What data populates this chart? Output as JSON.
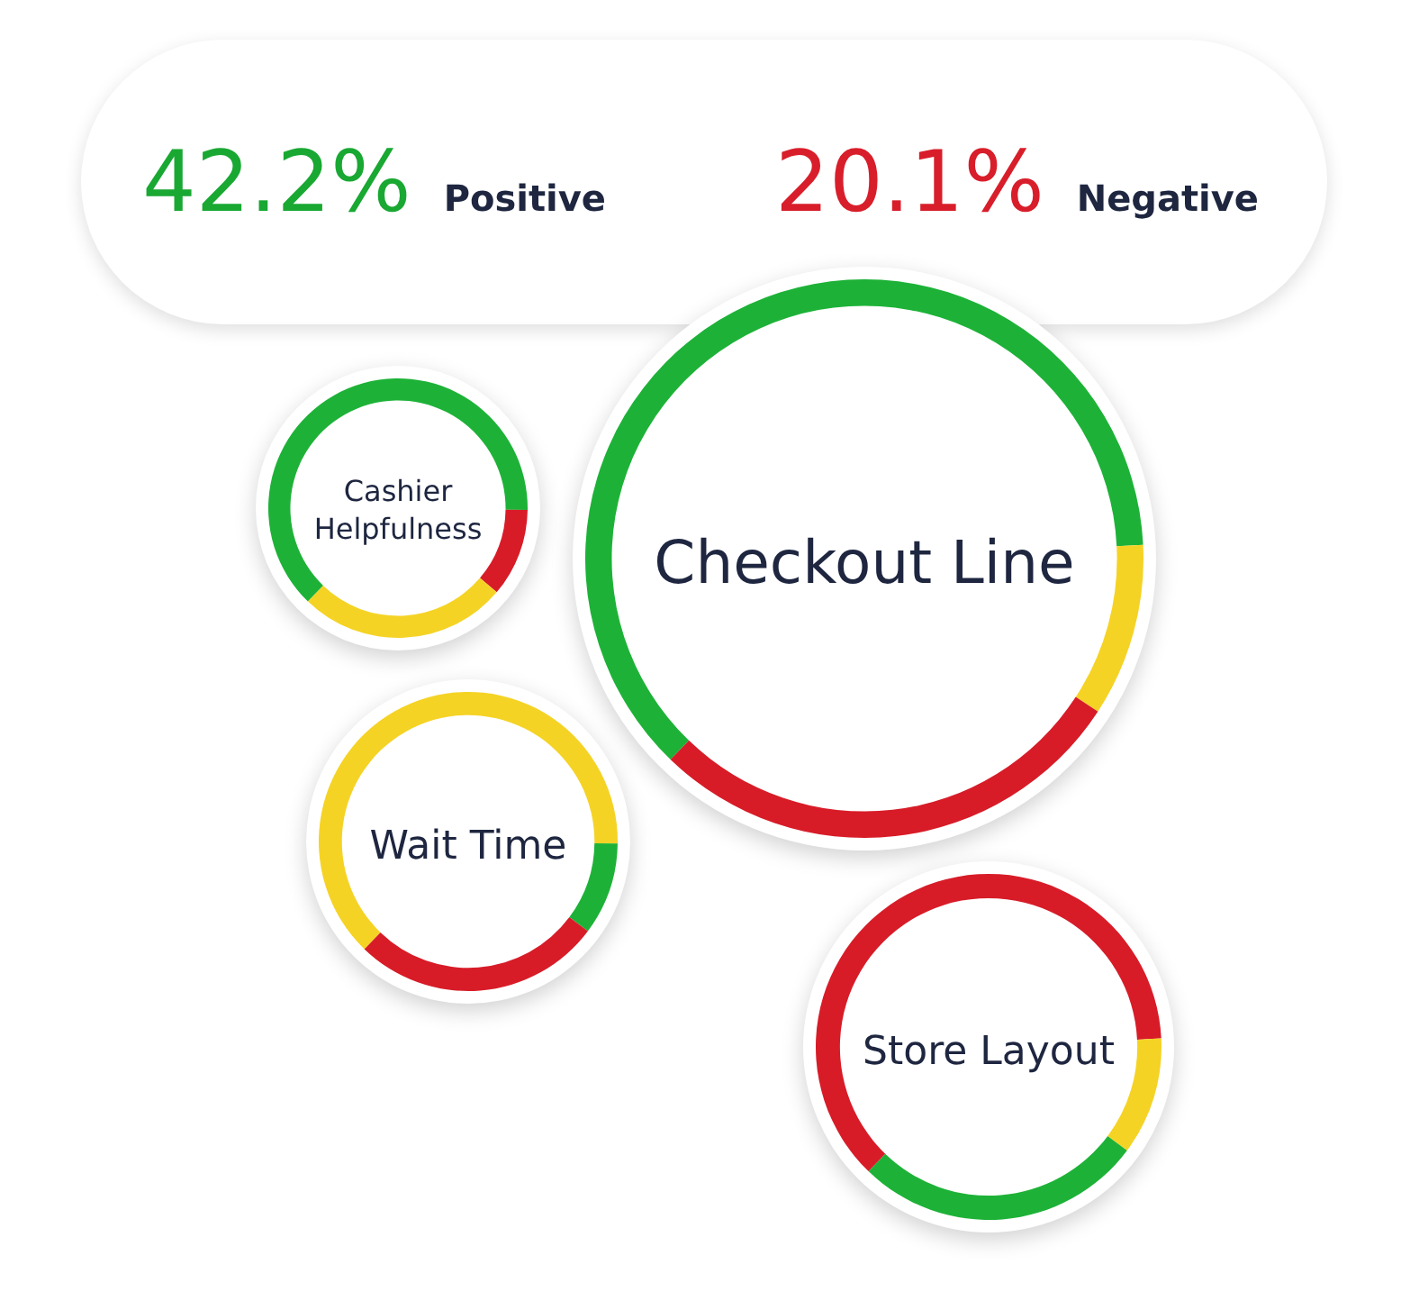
{
  "chart_data": [
    {
      "type": "other",
      "annotations": [
        "42.2%",
        "Positive",
        "20.1%",
        "Negative"
      ]
    },
    {
      "type": "donut",
      "title": "Cashier Helpfulness",
      "categories": [
        null,
        null,
        null
      ],
      "values": [
        63,
        11,
        26
      ],
      "colors": [
        "#1db237",
        "#d71c28",
        "#f5d325"
      ]
    },
    {
      "type": "donut",
      "title": "Checkout Line",
      "categories": [
        null,
        null,
        null
      ],
      "values": [
        62,
        10,
        28
      ],
      "colors": [
        "#1db237",
        "#f5d325",
        "#d71c28"
      ]
    },
    {
      "type": "donut",
      "title": "Wait Time",
      "categories": [
        null,
        null,
        null
      ],
      "values": [
        63,
        10,
        27
      ],
      "colors": [
        "#f5d325",
        "#1db237",
        "#d71c28"
      ]
    },
    {
      "type": "donut",
      "title": "Store Layout",
      "categories": [
        null,
        null,
        null
      ],
      "values": [
        62,
        11,
        27
      ],
      "colors": [
        "#d71c28",
        "#f5d325",
        "#1db237"
      ]
    }
  ]
}
